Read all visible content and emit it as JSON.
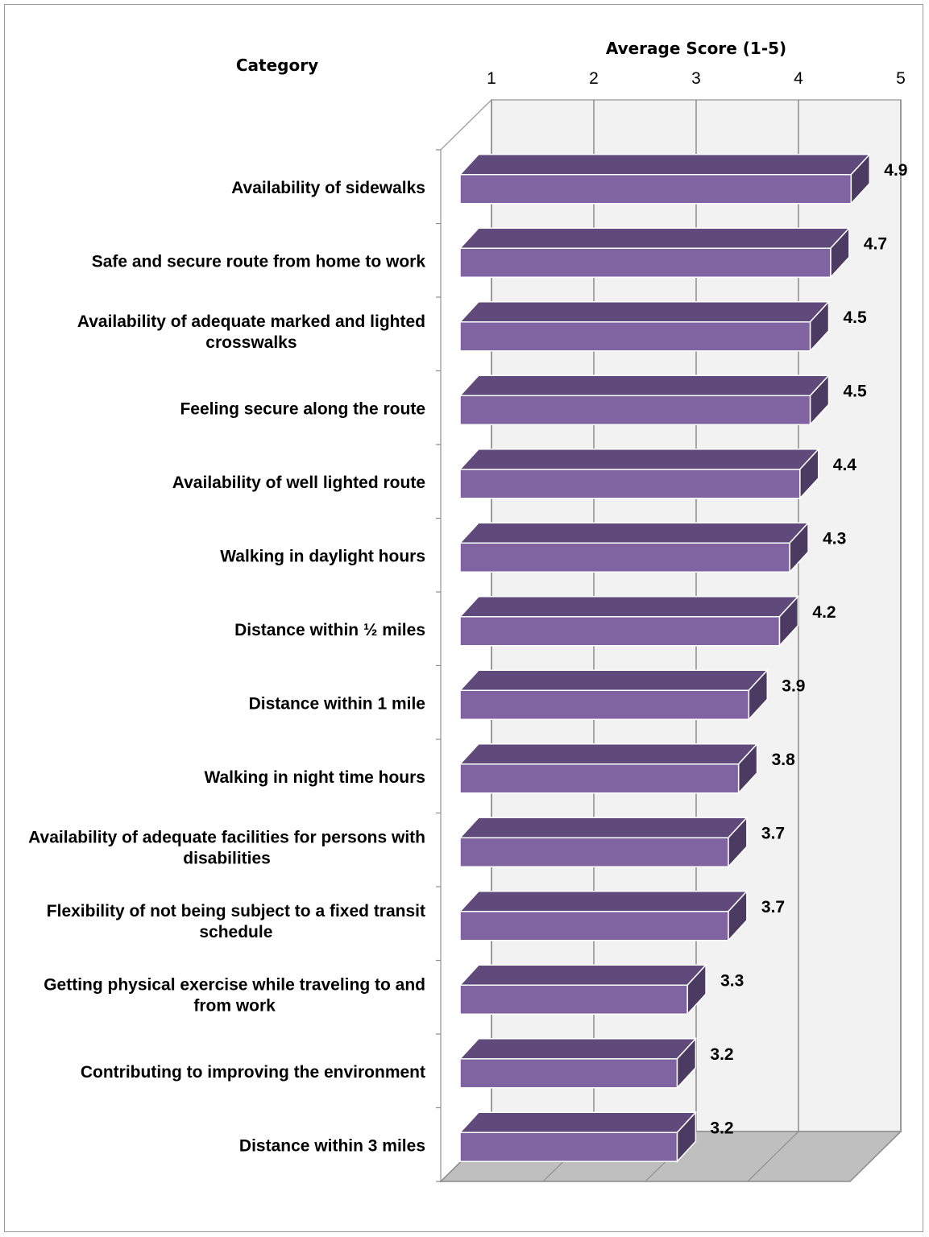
{
  "chart_data": {
    "type": "bar",
    "orientation": "horizontal",
    "three_d": true,
    "category_header": "Category",
    "axis_title": "Average Score (1-5)",
    "xlim": [
      1,
      5
    ],
    "ticks": [
      "1",
      "2",
      "3",
      "4",
      "5"
    ],
    "grid": true,
    "bar_color": "#8064a2",
    "bar_top_color": "#5f4a7b",
    "bar_side_color": "#4b3a62",
    "categories": [
      [
        "Availability of sidewalks"
      ],
      [
        "Safe  and secure route from home  to work"
      ],
      [
        "Availability of adequate marked and lighted",
        "crosswalks"
      ],
      [
        "Feeling secure along the route"
      ],
      [
        "Availability of well lighted route"
      ],
      [
        "Walking in daylight hours"
      ],
      [
        "Distance within ½ miles"
      ],
      [
        "Distance within 1 mile"
      ],
      [
        "Walking in night time hours"
      ],
      [
        "Availability of adequate facilities for persons with",
        "disabilities"
      ],
      [
        "Flexibility of not being subject to a fixed transit",
        "schedule"
      ],
      [
        "Getting physical exercise while traveling to and",
        "from work"
      ],
      [
        "Contributing to improving the environment"
      ],
      [
        "Distance within 3 miles"
      ]
    ],
    "values": [
      4.9,
      4.7,
      4.5,
      4.5,
      4.4,
      4.3,
      4.2,
      3.9,
      3.8,
      3.7,
      3.7,
      3.3,
      3.2,
      3.2
    ],
    "value_labels": [
      "4.9",
      "4.7",
      "4.5",
      "4.5",
      "4.4",
      "4.3",
      "4.2",
      "3.9",
      "3.8",
      "3.7",
      "3.7",
      "3.3",
      "3.2",
      "3.2"
    ]
  }
}
